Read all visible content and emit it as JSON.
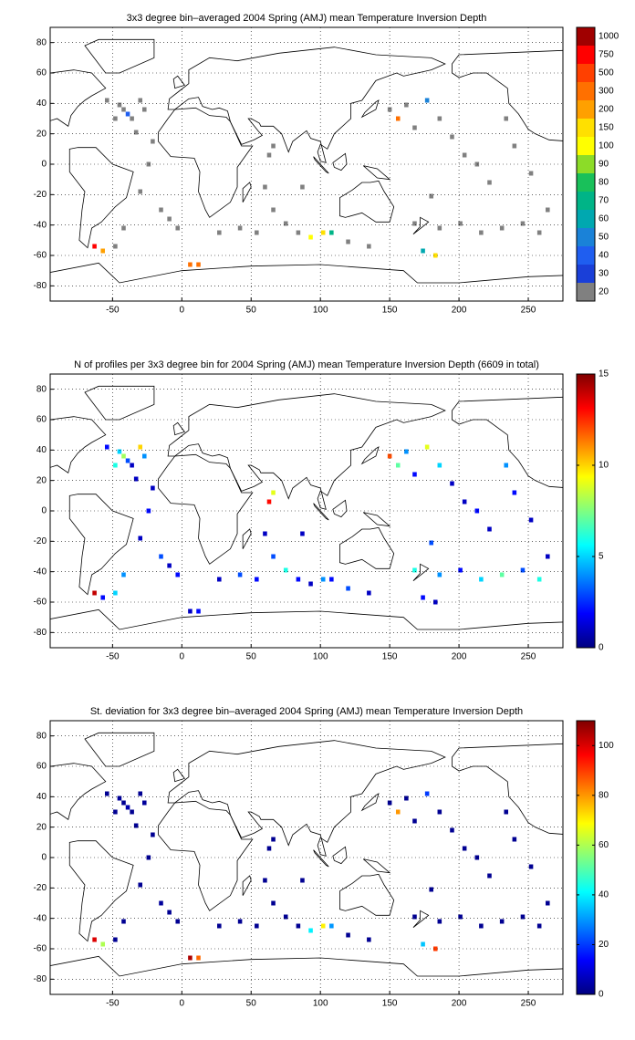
{
  "chart_data": [
    {
      "type": "heatmap",
      "title": "3x3 degree bin–averaged 2004 Spring (AMJ) mean Temperature Inversion Depth",
      "xlim": [
        -95,
        275
      ],
      "ylim": [
        -90,
        90
      ],
      "xticks": [
        -50,
        0,
        50,
        100,
        150,
        200,
        250
      ],
      "yticks": [
        -80,
        -60,
        -40,
        -20,
        0,
        20,
        40,
        60,
        80
      ],
      "grid": true,
      "x": [
        -45,
        -42,
        -39,
        -36,
        -30,
        -27,
        -54,
        -48,
        -33,
        -21,
        -24,
        -30,
        -15,
        -9,
        -3,
        -42,
        -48,
        -57,
        60,
        66,
        75,
        84,
        93,
        102,
        108,
        63,
        66,
        87,
        54,
        42,
        27,
        150,
        156,
        162,
        168,
        177,
        186,
        195,
        204,
        213,
        222,
        180,
        168,
        186,
        201,
        216,
        231,
        246,
        258,
        264,
        252,
        240,
        234,
        174,
        183,
        6,
        12,
        120,
        135,
        -63
      ],
      "y": [
        39,
        36,
        33,
        30,
        42,
        36,
        42,
        30,
        21,
        15,
        0,
        -18,
        -30,
        -36,
        -42,
        -42,
        -54,
        -57,
        -15,
        -30,
        -39,
        -45,
        -48,
        -45,
        -45,
        6,
        12,
        -15,
        -45,
        -42,
        -45,
        36,
        30,
        39,
        24,
        42,
        30,
        18,
        6,
        0,
        -12,
        -21,
        -39,
        -42,
        -39,
        -45,
        -42,
        -39,
        -45,
        -30,
        -6,
        12,
        30,
        -57,
        -60,
        -66,
        -66,
        -51,
        -54,
        -54
      ],
      "values": [
        15,
        15,
        35,
        15,
        15,
        15,
        15,
        15,
        15,
        15,
        15,
        15,
        15,
        15,
        15,
        15,
        15,
        180,
        15,
        15,
        15,
        15,
        95,
        120,
        65,
        15,
        15,
        15,
        15,
        15,
        15,
        15,
        220,
        15,
        15,
        45,
        15,
        15,
        15,
        15,
        15,
        15,
        15,
        15,
        15,
        15,
        15,
        15,
        15,
        15,
        15,
        15,
        15,
        55,
        130,
        250,
        220,
        15,
        15,
        600
      ],
      "colorbar": {
        "levels": [
          20,
          30,
          40,
          50,
          60,
          70,
          80,
          90,
          100,
          150,
          200,
          300,
          500,
          750,
          1000
        ],
        "colors": [
          "#808080",
          "#1a3fd8",
          "#1f5ef0",
          "#1a82d8",
          "#00a8b0",
          "#00b487",
          "#19c05a",
          "#8cdc28",
          "#ffff00",
          "#ffe000",
          "#ffa000",
          "#ff7000",
          "#ff4000",
          "#ff0000",
          "#a00000"
        ]
      }
    },
    {
      "type": "heatmap",
      "title": "N of profiles per 3x3 degree bin for 2004 Spring (AMJ) mean Temperature Inversion Depth  (6609 in total)",
      "xlim": [
        -95,
        275
      ],
      "ylim": [
        -90,
        90
      ],
      "xticks": [
        -50,
        0,
        50,
        100,
        150,
        200,
        250
      ],
      "yticks": [
        -80,
        -60,
        -40,
        -20,
        0,
        20,
        40,
        60,
        80
      ],
      "grid": true,
      "x": [
        -45,
        -42,
        -39,
        -36,
        -30,
        -27,
        -54,
        -48,
        -33,
        -21,
        -24,
        -30,
        -15,
        -9,
        -3,
        -42,
        -48,
        -57,
        60,
        66,
        75,
        84,
        93,
        102,
        108,
        63,
        66,
        87,
        54,
        42,
        27,
        150,
        156,
        162,
        168,
        177,
        186,
        195,
        204,
        213,
        222,
        180,
        168,
        186,
        201,
        216,
        231,
        246,
        258,
        264,
        252,
        240,
        234,
        174,
        183,
        6,
        12,
        120,
        135,
        -63
      ],
      "y": [
        39,
        36,
        33,
        30,
        42,
        36,
        42,
        30,
        21,
        15,
        0,
        -18,
        -30,
        -36,
        -42,
        -42,
        -54,
        -57,
        -15,
        -30,
        -39,
        -45,
        -48,
        -45,
        -45,
        6,
        12,
        -15,
        -45,
        -42,
        -45,
        36,
        30,
        39,
        24,
        42,
        30,
        18,
        6,
        0,
        -12,
        -21,
        -39,
        -42,
        -39,
        -45,
        -42,
        -39,
        -45,
        -30,
        -6,
        12,
        30,
        -57,
        -60,
        -66,
        -66,
        -51,
        -54,
        -54
      ],
      "values": [
        5,
        8,
        3,
        1,
        10,
        4,
        2,
        6,
        1,
        1,
        2,
        1,
        3,
        1,
        2,
        4,
        5,
        2,
        1,
        3,
        6,
        2,
        1,
        4,
        2,
        13,
        9,
        1,
        2,
        3,
        1,
        12,
        7,
        4,
        2,
        9,
        5,
        1,
        1,
        2,
        1,
        3,
        6,
        4,
        2,
        5,
        7,
        3,
        6,
        1,
        1,
        2,
        4,
        2,
        1,
        1,
        2,
        3,
        1,
        14
      ],
      "colorbar": {
        "lim": [
          0,
          15
        ],
        "ticks": [
          0,
          5,
          10,
          15
        ],
        "colormap": "jet"
      }
    },
    {
      "type": "heatmap",
      "title": "St. deviation for 3x3 degree bin–averaged 2004 Spring (AMJ) mean Temperature Inversion Depth",
      "xlim": [
        -95,
        275
      ],
      "ylim": [
        -90,
        90
      ],
      "xticks": [
        -50,
        0,
        50,
        100,
        150,
        200,
        250
      ],
      "yticks": [
        -80,
        -60,
        -40,
        -20,
        0,
        20,
        40,
        60,
        80
      ],
      "grid": true,
      "x": [
        -45,
        -42,
        -39,
        -36,
        -30,
        -27,
        -54,
        -48,
        -33,
        -21,
        -24,
        -30,
        -15,
        -9,
        -3,
        -42,
        -48,
        -57,
        60,
        66,
        75,
        84,
        93,
        102,
        108,
        63,
        66,
        87,
        54,
        42,
        27,
        150,
        156,
        162,
        168,
        177,
        186,
        195,
        204,
        213,
        222,
        180,
        168,
        186,
        201,
        216,
        231,
        246,
        258,
        264,
        252,
        240,
        234,
        174,
        183,
        6,
        12,
        120,
        135,
        -63
      ],
      "y": [
        39,
        36,
        33,
        30,
        42,
        36,
        42,
        30,
        21,
        15,
        0,
        -18,
        -30,
        -36,
        -42,
        -42,
        -54,
        -57,
        -15,
        -30,
        -39,
        -45,
        -48,
        -45,
        -45,
        6,
        12,
        -15,
        -45,
        -42,
        -45,
        36,
        30,
        39,
        24,
        42,
        30,
        18,
        6,
        0,
        -12,
        -21,
        -39,
        -42,
        -39,
        -45,
        -42,
        -39,
        -45,
        -30,
        -6,
        12,
        30,
        -57,
        -60,
        -66,
        -66,
        -51,
        -54,
        -54
      ],
      "values": [
        3,
        2,
        5,
        2,
        2,
        3,
        2,
        2,
        2,
        2,
        2,
        2,
        3,
        2,
        2,
        2,
        2,
        60,
        2,
        2,
        2,
        2,
        40,
        70,
        30,
        2,
        2,
        2,
        2,
        2,
        2,
        2,
        80,
        2,
        2,
        20,
        2,
        2,
        2,
        2,
        2,
        2,
        2,
        2,
        2,
        2,
        2,
        2,
        2,
        2,
        2,
        2,
        2,
        35,
        90,
        105,
        85,
        2,
        2,
        100
      ],
      "colorbar": {
        "lim": [
          0,
          110
        ],
        "ticks": [
          0,
          20,
          40,
          60,
          80,
          100
        ],
        "colormap": "jet"
      }
    }
  ]
}
